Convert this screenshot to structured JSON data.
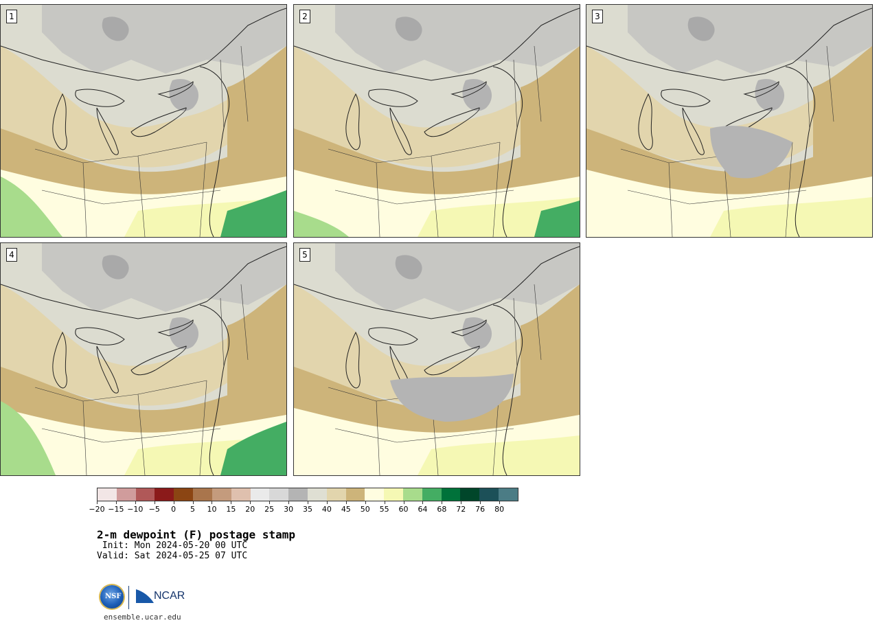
{
  "panels": [
    {
      "label": "1"
    },
    {
      "label": "2"
    },
    {
      "label": "3"
    },
    {
      "label": "4"
    },
    {
      "label": "5"
    }
  ],
  "colorbar": {
    "colors": [
      "#f2e6e6",
      "#d09c9c",
      "#b05858",
      "#8b1a1a",
      "#8b4513",
      "#a9754c",
      "#c49b7d",
      "#dfc0ae",
      "#eaeaea",
      "#d8d8d8",
      "#b4b4b4",
      "#dfdfd3",
      "#e2d5ad",
      "#cdb47a",
      "#fffde0",
      "#f5f8b4",
      "#a8dc8c",
      "#44ad63",
      "#00723a",
      "#00462a",
      "#1c5058",
      "#4b7c85"
    ],
    "tick_labels": [
      "−20",
      "−15",
      "−10",
      "−5",
      "0",
      "5",
      "10",
      "15",
      "20",
      "25",
      "30",
      "35",
      "40",
      "45",
      "50",
      "55",
      "60",
      "64",
      "68",
      "72",
      "76",
      "80"
    ]
  },
  "title": "2-m dewpoint (F) postage stamp",
  "init": " Init: Mon 2024-05-20 00 UTC",
  "valid": "Valid: Sat 2024-05-25 07 UTC",
  "logo": {
    "nsf": "NSF",
    "ncar": "NCAR"
  },
  "url": "ensemble.ucar.edu"
}
